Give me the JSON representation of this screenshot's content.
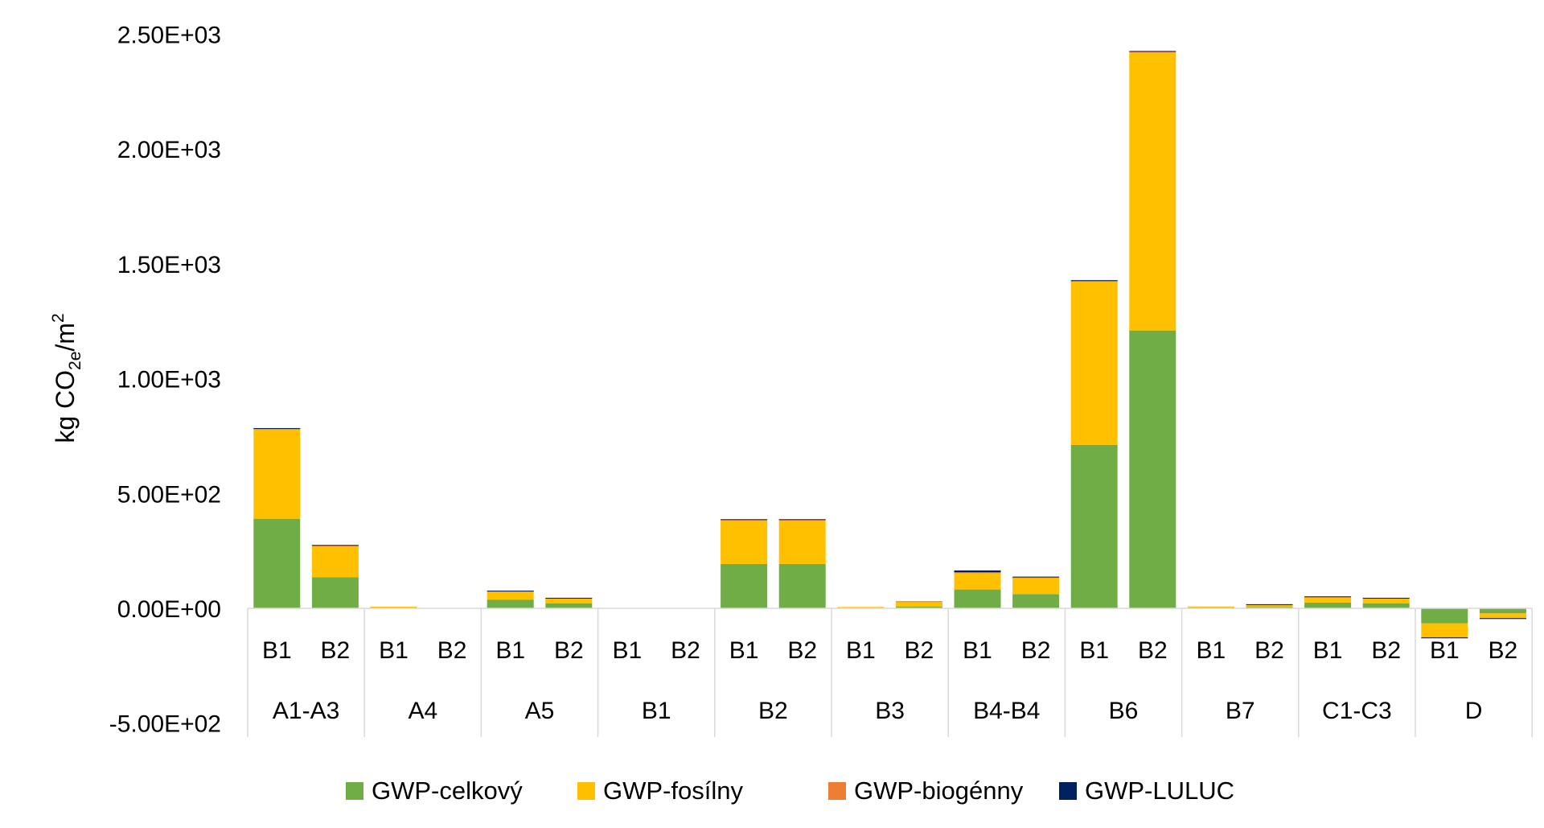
{
  "chart_data": {
    "type": "bar",
    "stacked": true,
    "title": "",
    "xlabel": "",
    "ylabel": {
      "prefix": "kg CO",
      "sub": "2e",
      "mid": "/m",
      "sup": "2"
    },
    "ylim": [
      -500,
      2500
    ],
    "yticks": [
      -500,
      0,
      500,
      1000,
      1500,
      2000,
      2500
    ],
    "ytick_labels": [
      "-5.00E+02",
      "0.00E+00",
      "5.00E+02",
      "1.00E+03",
      "1.50E+03",
      "2.00E+03",
      "2.50E+03"
    ],
    "groups": [
      "A1-A3",
      "A4",
      "A5",
      "B1",
      "B2",
      "B3",
      "B4-B4",
      "B6",
      "B7",
      "C1-C3",
      "D"
    ],
    "subcategories": [
      "B1",
      "B2"
    ],
    "series": [
      {
        "name": "GWP-celkový",
        "color": "#70AD47",
        "values": [
          [
            390,
            135
          ],
          [
            3,
            0
          ],
          [
            38,
            22
          ],
          [
            0,
            0
          ],
          [
            193,
            193
          ],
          [
            3,
            8
          ],
          [
            82,
            62
          ],
          [
            712,
            1210
          ],
          [
            4,
            6
          ],
          [
            25,
            22
          ],
          [
            -65,
            -22
          ]
        ]
      },
      {
        "name": "GWP-fosílny",
        "color": "#FFC000",
        "values": [
          [
            390,
            138
          ],
          [
            4,
            0
          ],
          [
            37,
            22
          ],
          [
            0,
            0
          ],
          [
            192,
            192
          ],
          [
            3,
            22
          ],
          [
            72,
            72
          ],
          [
            712,
            1212
          ],
          [
            4,
            10
          ],
          [
            25,
            22
          ],
          [
            -60,
            -20
          ]
        ]
      },
      {
        "name": "GWP-biogénny",
        "color": "#ED7D31",
        "values": [
          [
            2,
            1
          ],
          [
            0,
            0
          ],
          [
            1,
            1
          ],
          [
            0,
            0
          ],
          [
            1,
            1
          ],
          [
            0,
            1
          ],
          [
            3,
            2
          ],
          [
            2,
            2
          ],
          [
            0,
            1
          ],
          [
            1,
            1
          ],
          [
            -2,
            -1
          ]
        ]
      },
      {
        "name": "GWP-LULUC",
        "color": "#002060",
        "values": [
          [
            3,
            2
          ],
          [
            0,
            0
          ],
          [
            1,
            1
          ],
          [
            0,
            0
          ],
          [
            2,
            2
          ],
          [
            0,
            0
          ],
          [
            8,
            2
          ],
          [
            3,
            3
          ],
          [
            0,
            1
          ],
          [
            1,
            1
          ],
          [
            -1,
            -1
          ]
        ]
      }
    ]
  }
}
